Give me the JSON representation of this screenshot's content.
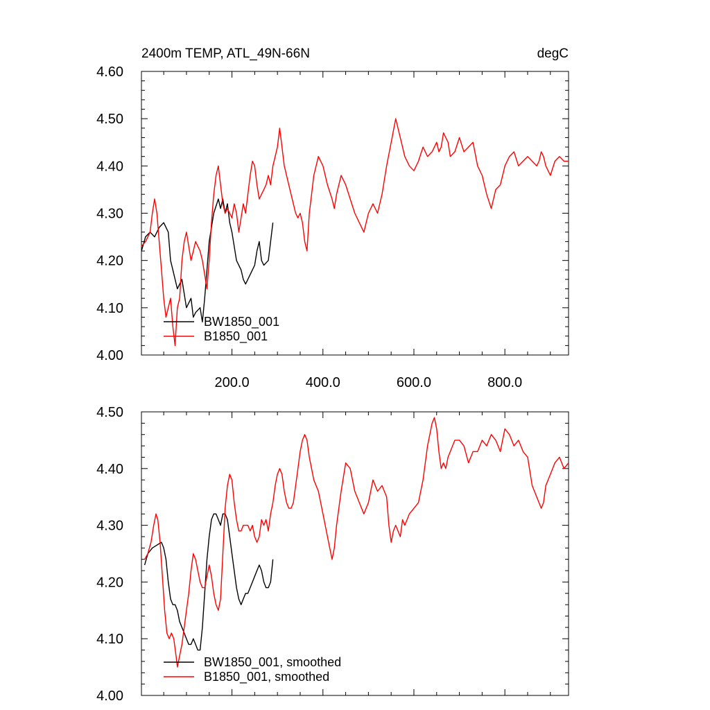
{
  "chart_data": [
    {
      "type": "line",
      "title": "2400m TEMP, ATL_49N-66N",
      "units": "degC",
      "xlim": [
        1,
        940
      ],
      "ylim": [
        4.0,
        4.6
      ],
      "xticks": [
        200,
        400,
        600,
        800
      ],
      "xtick_labels": [
        "200.0",
        "400.0",
        "600.0",
        "800.0"
      ],
      "yticks": [
        4.0,
        4.1,
        4.2,
        4.3,
        4.4,
        4.5,
        4.6
      ],
      "ytick_labels": [
        "4.00",
        "4.10",
        "4.20",
        "4.30",
        "4.40",
        "4.50",
        "4.60"
      ],
      "grid": false,
      "legend_position": "bottom-left",
      "series": [
        {
          "name": "BW1850_001",
          "color": "#000000",
          "x": [
            1,
            10,
            20,
            30,
            40,
            50,
            60,
            65,
            70,
            80,
            90,
            100,
            110,
            115,
            120,
            130,
            135,
            140,
            145,
            150,
            160,
            170,
            175,
            180,
            185,
            190,
            195,
            200,
            210,
            220,
            225,
            230,
            240,
            250,
            255,
            260,
            265,
            270,
            280,
            290
          ],
          "values": [
            4.22,
            4.25,
            4.26,
            4.25,
            4.27,
            4.28,
            4.26,
            4.2,
            4.18,
            4.14,
            4.16,
            4.1,
            4.12,
            4.08,
            4.09,
            4.1,
            4.07,
            4.12,
            4.18,
            4.24,
            4.3,
            4.33,
            4.31,
            4.33,
            4.3,
            4.32,
            4.28,
            4.26,
            4.2,
            4.18,
            4.16,
            4.15,
            4.17,
            4.19,
            4.22,
            4.24,
            4.2,
            4.19,
            4.2,
            4.28
          ]
        },
        {
          "name": "B1850_001",
          "color": "#ff0000",
          "x": [
            1,
            10,
            20,
            25,
            30,
            35,
            40,
            45,
            50,
            55,
            60,
            65,
            70,
            75,
            80,
            85,
            90,
            95,
            100,
            105,
            110,
            115,
            120,
            125,
            130,
            135,
            140,
            145,
            150,
            155,
            160,
            165,
            170,
            175,
            180,
            185,
            190,
            195,
            200,
            205,
            210,
            215,
            220,
            225,
            230,
            235,
            240,
            245,
            250,
            255,
            260,
            265,
            270,
            275,
            280,
            285,
            290,
            295,
            300,
            305,
            310,
            315,
            320,
            325,
            330,
            335,
            340,
            345,
            350,
            355,
            360,
            365,
            370,
            375,
            380,
            390,
            400,
            410,
            420,
            425,
            430,
            440,
            450,
            460,
            470,
            480,
            490,
            500,
            510,
            520,
            530,
            540,
            550,
            560,
            570,
            580,
            590,
            600,
            610,
            620,
            630,
            640,
            650,
            655,
            660,
            665,
            670,
            675,
            680,
            690,
            700,
            710,
            720,
            730,
            740,
            750,
            760,
            770,
            780,
            790,
            800,
            810,
            820,
            830,
            840,
            850,
            860,
            870,
            875,
            880,
            885,
            890,
            900,
            910,
            920,
            930,
            940
          ],
          "values": [
            4.23,
            4.24,
            4.26,
            4.3,
            4.33,
            4.3,
            4.24,
            4.18,
            4.12,
            4.08,
            4.1,
            4.12,
            4.06,
            4.02,
            4.1,
            4.12,
            4.2,
            4.24,
            4.26,
            4.23,
            4.2,
            4.22,
            4.24,
            4.23,
            4.22,
            4.2,
            4.17,
            4.14,
            4.2,
            4.28,
            4.34,
            4.38,
            4.4,
            4.36,
            4.32,
            4.3,
            4.31,
            4.3,
            4.29,
            4.32,
            4.3,
            4.26,
            4.29,
            4.32,
            4.3,
            4.34,
            4.38,
            4.41,
            4.4,
            4.36,
            4.33,
            4.34,
            4.35,
            4.36,
            4.38,
            4.36,
            4.4,
            4.42,
            4.44,
            4.48,
            4.44,
            4.4,
            4.38,
            4.36,
            4.34,
            4.32,
            4.3,
            4.29,
            4.3,
            4.28,
            4.24,
            4.22,
            4.3,
            4.34,
            4.38,
            4.42,
            4.4,
            4.36,
            4.33,
            4.31,
            4.34,
            4.38,
            4.36,
            4.33,
            4.3,
            4.28,
            4.26,
            4.3,
            4.32,
            4.3,
            4.34,
            4.4,
            4.45,
            4.5,
            4.46,
            4.42,
            4.4,
            4.39,
            4.41,
            4.44,
            4.42,
            4.43,
            4.45,
            4.43,
            4.44,
            4.47,
            4.46,
            4.45,
            4.42,
            4.43,
            4.46,
            4.43,
            4.44,
            4.45,
            4.4,
            4.38,
            4.34,
            4.31,
            4.35,
            4.36,
            4.4,
            4.42,
            4.43,
            4.4,
            4.41,
            4.42,
            4.41,
            4.4,
            4.41,
            4.43,
            4.42,
            4.4,
            4.38,
            4.41,
            4.42,
            4.41,
            4.41
          ]
        }
      ]
    },
    {
      "type": "line",
      "title": "",
      "xlim": [
        1,
        940
      ],
      "ylim": [
        4.0,
        4.5
      ],
      "xticks": [
        200,
        400,
        600,
        800
      ],
      "xtick_labels": [],
      "yticks": [
        4.0,
        4.1,
        4.2,
        4.3,
        4.4,
        4.5
      ],
      "ytick_labels": [
        "4.00",
        "4.10",
        "4.20",
        "4.30",
        "4.40",
        "4.50"
      ],
      "grid": false,
      "legend_position": "bottom-left",
      "series": [
        {
          "name": "BW1850_001, smoothed",
          "color": "#000000",
          "x": [
            8,
            15,
            25,
            35,
            45,
            50,
            55,
            60,
            65,
            70,
            75,
            80,
            85,
            90,
            95,
            100,
            105,
            110,
            115,
            120,
            125,
            130,
            135,
            140,
            145,
            150,
            155,
            160,
            165,
            170,
            175,
            180,
            185,
            190,
            195,
            200,
            205,
            210,
            215,
            220,
            225,
            230,
            235,
            240,
            245,
            250,
            255,
            260,
            265,
            270,
            275,
            280,
            285,
            290
          ],
          "values": [
            4.23,
            4.25,
            4.26,
            4.265,
            4.27,
            4.26,
            4.24,
            4.2,
            4.17,
            4.16,
            4.16,
            4.15,
            4.13,
            4.12,
            4.11,
            4.1,
            4.09,
            4.09,
            4.1,
            4.09,
            4.08,
            4.08,
            4.12,
            4.18,
            4.24,
            4.28,
            4.31,
            4.32,
            4.32,
            4.31,
            4.3,
            4.32,
            4.32,
            4.31,
            4.28,
            4.25,
            4.22,
            4.19,
            4.17,
            4.16,
            4.17,
            4.18,
            4.18,
            4.19,
            4.2,
            4.21,
            4.22,
            4.23,
            4.22,
            4.2,
            4.19,
            4.19,
            4.2,
            4.24
          ]
        },
        {
          "name": "B1850_001, smoothed",
          "color": "#ff0000",
          "x": [
            8,
            15,
            22,
            28,
            33,
            37,
            42,
            47,
            52,
            57,
            62,
            67,
            72,
            77,
            80,
            85,
            90,
            95,
            100,
            105,
            110,
            115,
            120,
            125,
            130,
            135,
            140,
            145,
            150,
            155,
            160,
            165,
            170,
            175,
            180,
            185,
            190,
            195,
            200,
            205,
            210,
            215,
            220,
            225,
            230,
            235,
            240,
            245,
            250,
            255,
            260,
            265,
            270,
            275,
            280,
            285,
            290,
            295,
            300,
            305,
            310,
            315,
            320,
            325,
            330,
            335,
            340,
            345,
            350,
            355,
            360,
            365,
            370,
            375,
            380,
            385,
            390,
            395,
            400,
            410,
            420,
            425,
            430,
            440,
            450,
            460,
            465,
            470,
            480,
            490,
            500,
            510,
            520,
            530,
            540,
            545,
            550,
            555,
            560,
            570,
            575,
            580,
            590,
            600,
            610,
            620,
            630,
            640,
            645,
            650,
            655,
            660,
            665,
            670,
            675,
            680,
            690,
            700,
            710,
            720,
            730,
            740,
            750,
            760,
            770,
            780,
            790,
            800,
            810,
            820,
            830,
            840,
            850,
            860,
            870,
            880,
            885,
            890,
            900,
            910,
            920,
            930,
            940
          ],
          "values": [
            4.24,
            4.25,
            4.27,
            4.3,
            4.32,
            4.31,
            4.27,
            4.21,
            4.15,
            4.11,
            4.1,
            4.11,
            4.1,
            4.07,
            4.05,
            4.07,
            4.09,
            4.12,
            4.15,
            4.18,
            4.22,
            4.25,
            4.24,
            4.22,
            4.2,
            4.19,
            4.19,
            4.21,
            4.23,
            4.21,
            4.18,
            4.16,
            4.15,
            4.17,
            4.25,
            4.33,
            4.37,
            4.39,
            4.38,
            4.34,
            4.31,
            4.29,
            4.29,
            4.3,
            4.3,
            4.3,
            4.29,
            4.3,
            4.28,
            4.27,
            4.28,
            4.31,
            4.3,
            4.31,
            4.29,
            4.32,
            4.34,
            4.37,
            4.39,
            4.4,
            4.39,
            4.36,
            4.34,
            4.33,
            4.33,
            4.34,
            4.37,
            4.4,
            4.43,
            4.45,
            4.46,
            4.45,
            4.42,
            4.4,
            4.38,
            4.37,
            4.36,
            4.34,
            4.32,
            4.28,
            4.24,
            4.26,
            4.3,
            4.36,
            4.41,
            4.4,
            4.38,
            4.36,
            4.34,
            4.32,
            4.34,
            4.38,
            4.36,
            4.37,
            4.35,
            4.3,
            4.27,
            4.29,
            4.3,
            4.28,
            4.31,
            4.3,
            4.32,
            4.33,
            4.34,
            4.38,
            4.44,
            4.48,
            4.49,
            4.47,
            4.43,
            4.4,
            4.41,
            4.4,
            4.42,
            4.43,
            4.45,
            4.45,
            4.44,
            4.41,
            4.43,
            4.43,
            4.45,
            4.44,
            4.46,
            4.45,
            4.43,
            4.47,
            4.46,
            4.44,
            4.45,
            4.43,
            4.42,
            4.37,
            4.35,
            4.33,
            4.34,
            4.37,
            4.39,
            4.41,
            4.42,
            4.4,
            4.41
          ]
        }
      ]
    }
  ]
}
